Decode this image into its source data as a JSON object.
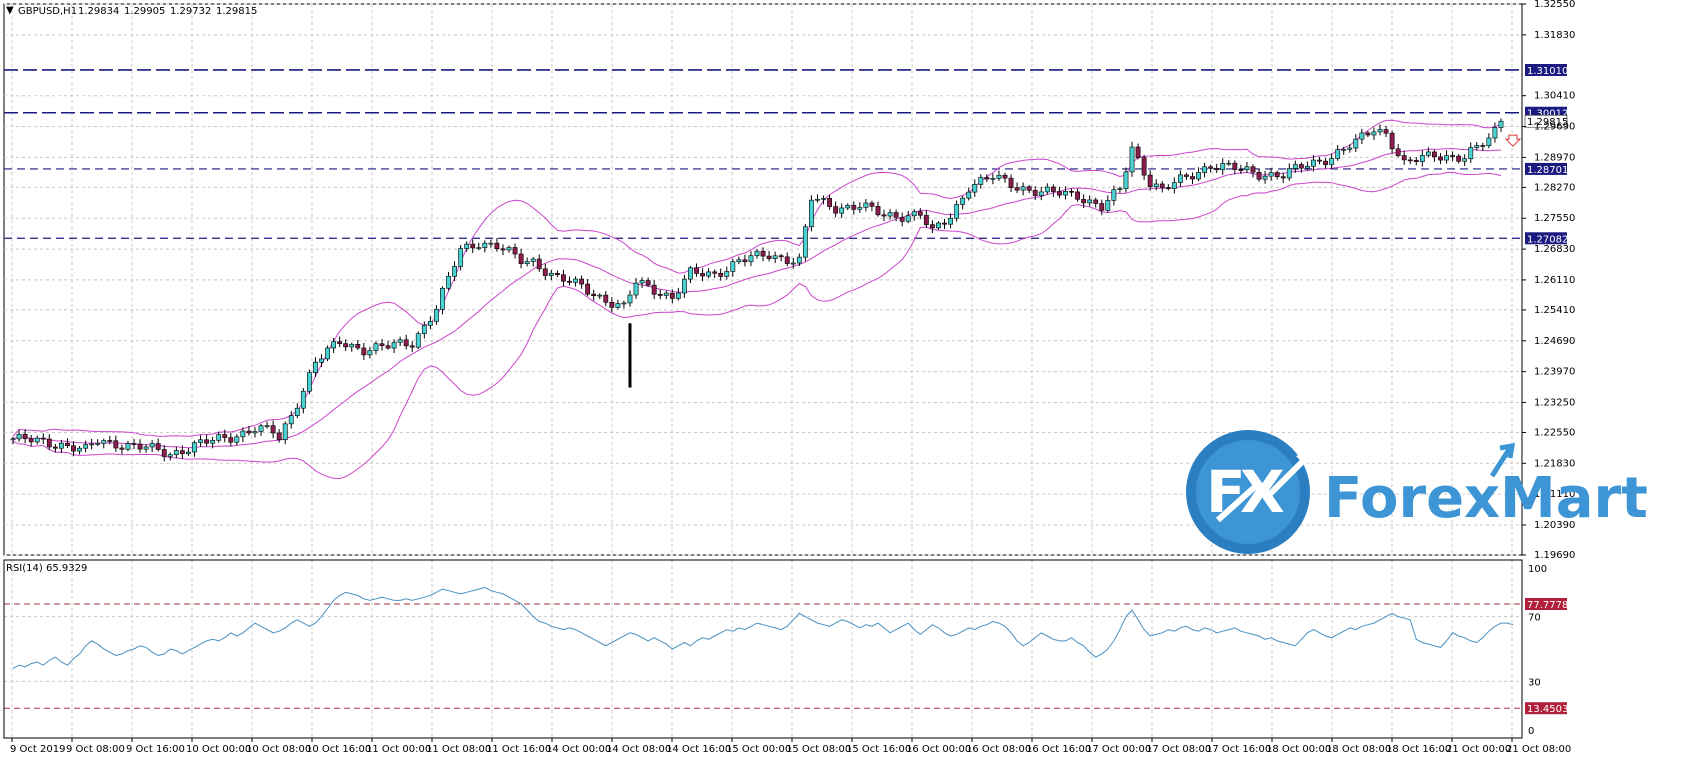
{
  "header": {
    "symbol_label": "GBPUSD,H1",
    "ohlc": [
      "1.29834",
      "1.29905",
      "1.29732",
      "1.29815"
    ]
  },
  "price_axis": {
    "ticks": [
      "1.32550",
      "1.31830",
      "1.30410",
      "1.29690",
      "1.28970",
      "1.28270",
      "1.27550",
      "1.26830",
      "1.26110",
      "1.25410",
      "1.24690",
      "1.23970",
      "1.23250",
      "1.22550",
      "1.21830",
      "1.21110",
      "1.20390",
      "1.19690"
    ],
    "current_price_label": "1.29815"
  },
  "levels": [
    {
      "value": 1.3101,
      "label": "1.31010",
      "dash": "long"
    },
    {
      "value": 1.30012,
      "label": "1.30012",
      "dash": "long"
    },
    {
      "value": 1.28701,
      "label": "1.28701",
      "dash": "short"
    },
    {
      "value": 1.27082,
      "label": "1.27082",
      "dash": "short"
    }
  ],
  "rsi": {
    "title": "RSI(14) 65.9329",
    "ticks": [
      "100",
      "70",
      "30",
      "0"
    ],
    "levels": [
      {
        "value": 77.7778,
        "label": "77.7778"
      },
      {
        "value": 13.4503,
        "label": "13.4503"
      }
    ],
    "values": [
      38,
      40,
      39,
      41,
      42,
      40,
      43,
      45,
      42,
      40,
      44,
      47,
      52,
      55,
      53,
      50,
      48,
      46,
      47,
      49,
      50,
      52,
      51,
      48,
      46,
      47,
      50,
      49,
      47,
      49,
      51,
      53,
      55,
      56,
      55,
      57,
      60,
      58,
      60,
      63,
      66,
      64,
      62,
      60,
      61,
      63,
      66,
      68,
      66,
      64,
      66,
      70,
      75,
      80,
      83,
      85,
      84,
      83,
      81,
      80,
      81,
      82,
      81,
      80,
      80,
      81,
      80,
      81,
      82,
      83,
      85,
      87,
      86,
      85,
      84,
      85,
      86,
      87,
      88,
      86,
      85,
      84,
      82,
      80,
      78,
      74,
      70,
      67,
      66,
      64,
      63,
      62,
      63,
      62,
      60,
      58,
      56,
      54,
      52,
      54,
      56,
      58,
      60,
      59,
      57,
      55,
      57,
      55,
      53,
      50,
      52,
      54,
      52,
      55,
      57,
      56,
      58,
      60,
      62,
      61,
      63,
      62,
      64,
      66,
      65,
      64,
      63,
      62,
      64,
      68,
      72,
      70,
      68,
      66,
      65,
      64,
      66,
      68,
      67,
      65,
      63,
      65,
      64,
      66,
      63,
      60,
      62,
      64,
      66,
      62,
      59,
      62,
      65,
      63,
      60,
      58,
      59,
      61,
      63,
      62,
      64,
      65,
      67,
      66,
      64,
      60,
      55,
      52,
      54,
      57,
      60,
      58,
      56,
      55,
      55,
      57,
      54,
      52,
      48,
      45,
      47,
      50,
      55,
      62,
      70,
      74,
      68,
      62,
      58,
      59,
      60,
      62,
      61,
      63,
      64,
      62,
      61,
      63,
      62,
      60,
      61,
      62,
      63,
      61,
      60,
      59,
      58,
      56,
      57,
      55,
      54,
      53,
      52,
      56,
      60,
      62,
      60,
      58,
      57,
      59,
      61,
      63,
      62,
      64,
      65,
      66,
      68,
      70,
      72,
      70,
      69,
      68,
      56,
      54,
      53,
      52,
      51,
      55,
      60,
      58,
      57,
      55,
      54,
      57,
      61,
      64,
      66,
      66,
      65
    ],
    "ylim": [
      0,
      100
    ]
  },
  "time_axis": {
    "labels": [
      "9 Oct 2019",
      "9 Oct 08:00",
      "9 Oct 16:00",
      "10 Oct 00:00",
      "10 Oct 08:00",
      "10 Oct 16:00",
      "11 Oct 00:00",
      "11 Oct 08:00",
      "11 Oct 16:00",
      "14 Oct 00:00",
      "14 Oct 08:00",
      "14 Oct 16:00",
      "15 Oct 00:00",
      "15 Oct 08:00",
      "15 Oct 16:00",
      "16 Oct 00:00",
      "16 Oct 08:00",
      "16 Oct 16:00",
      "17 Oct 00:00",
      "17 Oct 08:00",
      "17 Oct 16:00",
      "18 Oct 00:00",
      "18 Oct 08:00",
      "18 Oct 16:00",
      "21 Oct 00:00",
      "21 Oct 08:00"
    ]
  },
  "chart_data": {
    "type": "candlestick",
    "title": "GBPUSD,H1",
    "indicators": [
      "Bollinger Bands",
      "RSI(14)"
    ],
    "ylim": [
      1.1969,
      1.3255
    ],
    "anchors": [
      [
        0,
        1.224
      ],
      [
        8,
        1.2228
      ],
      [
        12,
        1.2212
      ],
      [
        14,
        1.2235
      ],
      [
        18,
        1.2228
      ],
      [
        22,
        1.2218
      ],
      [
        26,
        1.2205
      ],
      [
        30,
        1.2225
      ],
      [
        36,
        1.2245
      ],
      [
        40,
        1.2265
      ],
      [
        43,
        1.2255
      ],
      [
        44,
        1.224
      ],
      [
        46,
        1.2295
      ],
      [
        50,
        1.242
      ],
      [
        54,
        1.2465
      ],
      [
        58,
        1.245
      ],
      [
        62,
        1.2455
      ],
      [
        66,
        1.2465
      ],
      [
        70,
        1.2545
      ],
      [
        74,
        1.268
      ],
      [
        77,
        1.27
      ],
      [
        80,
        1.269
      ],
      [
        84,
        1.2655
      ],
      [
        86,
        1.2655
      ],
      [
        90,
        1.2615
      ],
      [
        94,
        1.2595
      ],
      [
        98,
        1.2565
      ],
      [
        101,
        1.2545
      ],
      [
        103,
        1.2605
      ],
      [
        106,
        1.259
      ],
      [
        109,
        1.257
      ],
      [
        112,
        1.2625
      ],
      [
        116,
        1.2625
      ],
      [
        120,
        1.2655
      ],
      [
        125,
        1.267
      ],
      [
        130,
        1.2655
      ],
      [
        132,
        1.28
      ],
      [
        136,
        1.278
      ],
      [
        140,
        1.2785
      ],
      [
        144,
        1.276
      ],
      [
        150,
        1.2765
      ],
      [
        152,
        1.272
      ],
      [
        155,
        1.276
      ],
      [
        158,
        1.283
      ],
      [
        162,
        1.285
      ],
      [
        166,
        1.283
      ],
      [
        170,
        1.2815
      ],
      [
        176,
        1.281
      ],
      [
        180,
        1.278
      ],
      [
        183,
        1.282
      ],
      [
        185,
        1.292
      ],
      [
        188,
        1.284
      ],
      [
        190,
        1.282
      ],
      [
        194,
        1.285
      ],
      [
        198,
        1.288
      ],
      [
        202,
        1.287
      ],
      [
        206,
        1.286
      ],
      [
        210,
        1.2855
      ],
      [
        214,
        1.288
      ],
      [
        218,
        1.29
      ],
      [
        222,
        1.293
      ],
      [
        225,
        1.2965
      ],
      [
        227,
        1.2955
      ],
      [
        230,
        1.288
      ],
      [
        235,
        1.2905
      ],
      [
        240,
        1.2895
      ],
      [
        244,
        1.294
      ],
      [
        246,
        1.2981
      ]
    ],
    "anomaly": {
      "index": 102,
      "high": 1.251,
      "low": 1.236
    },
    "current_price": 1.29815
  },
  "logo": {
    "monogram": "FX",
    "name": "ForexMart"
  }
}
